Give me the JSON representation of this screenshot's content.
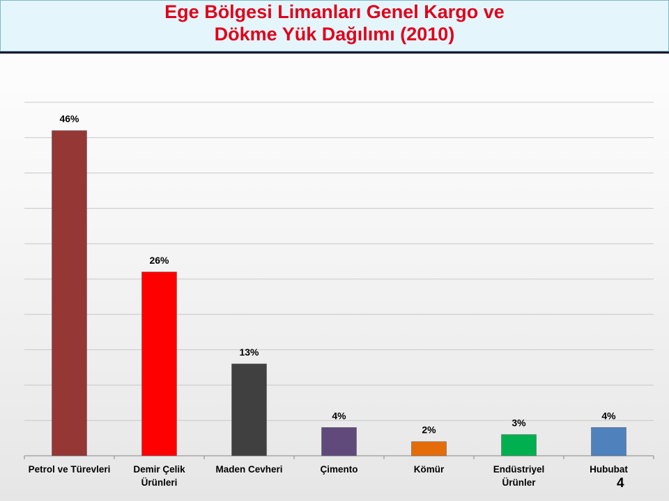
{
  "chart_data": {
    "type": "bar",
    "title": [
      "Ege Bölgesi Limanları Genel Kargo ve",
      "Dökme Yük Dağılımı (2010)"
    ],
    "categories": [
      "Petrol ve Türevleri",
      "Demir Çelik\nÜrünleri",
      "Maden Cevheri",
      "Çimento",
      "Kömür",
      "Endüstriyel\nÜrünler",
      "Hububat"
    ],
    "values": [
      46,
      26,
      13,
      4,
      2,
      3,
      4
    ],
    "value_labels": [
      "46%",
      "26%",
      "13%",
      "4%",
      "2%",
      "3%",
      "4%"
    ],
    "colors": [
      "#953735",
      "#ff0000",
      "#404040",
      "#604a7b",
      "#e46c0a",
      "#00b050",
      "#4f81bd"
    ],
    "ylim": [
      0,
      50
    ],
    "yticks": [
      0,
      5,
      10,
      15,
      20,
      25,
      30,
      35,
      40,
      45,
      50
    ],
    "grid": true
  },
  "page_number": "4"
}
